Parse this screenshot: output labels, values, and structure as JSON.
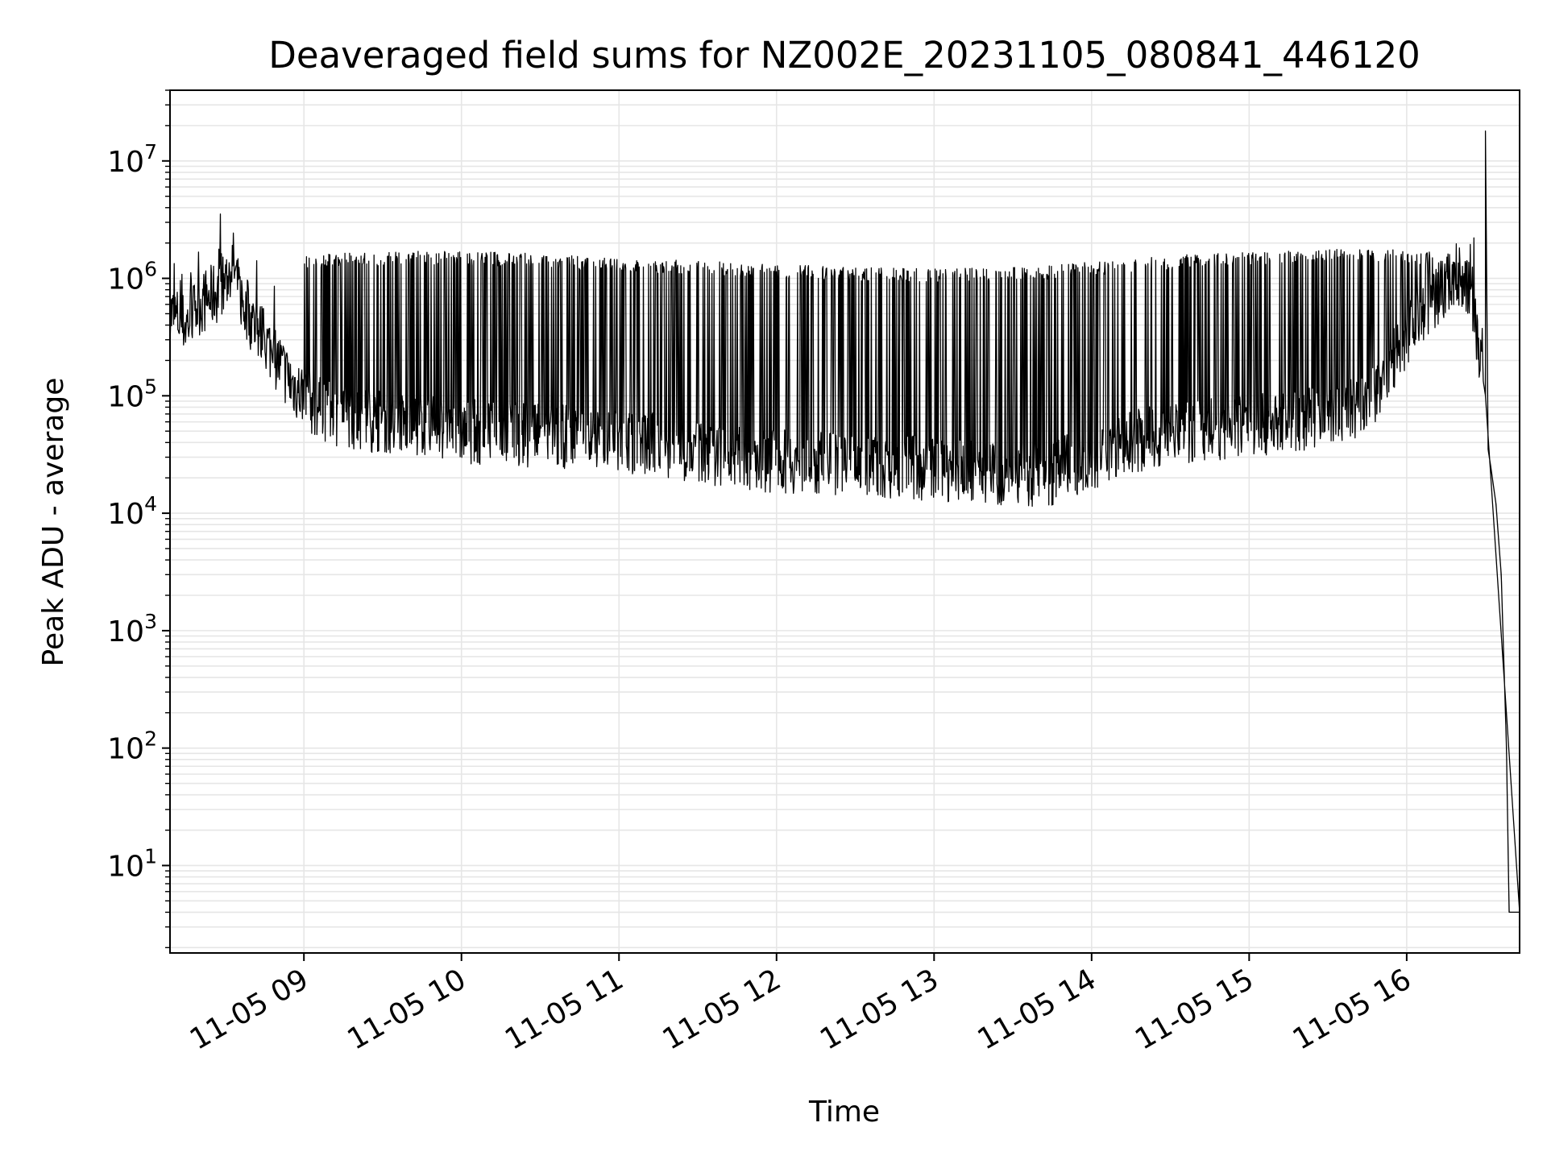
{
  "chart_data": {
    "type": "line",
    "title": "Deaveraged field sums for NZ002E_20231105_080841_446120",
    "xlabel": "Time",
    "ylabel": "Peak ADU - average",
    "yscale": "log",
    "ylim": [
      1.8,
      40000000
    ],
    "xlim": [
      "2023-11-05 08:09",
      "2023-11-05 16:43"
    ],
    "grid": true,
    "line_color": "#000000",
    "x_ticks": [
      "11-05 09",
      "11-05 10",
      "11-05 11",
      "11-05 12",
      "11-05 13",
      "11-05 14",
      "11-05 15",
      "11-05 16"
    ],
    "y_ticks": [
      {
        "value": 10,
        "base": "10",
        "exp": "1"
      },
      {
        "value": 100,
        "base": "10",
        "exp": "2"
      },
      {
        "value": 1000,
        "base": "10",
        "exp": "3"
      },
      {
        "value": 10000,
        "base": "10",
        "exp": "4"
      },
      {
        "value": 100000,
        "base": "10",
        "exp": "5"
      },
      {
        "value": 1000000,
        "base": "10",
        "exp": "6"
      },
      {
        "value": 10000000,
        "base": "10",
        "exp": "7"
      }
    ],
    "series": [
      {
        "x": [
          "2023-11-05 08:09",
          "2023-11-05 08:12",
          "2023-11-05 08:15",
          "2023-11-05 08:20",
          "2023-11-05 08:25",
          "2023-11-05 08:30",
          "2023-11-05 08:33",
          "2023-11-05 08:35",
          "2023-11-05 08:38",
          "2023-11-05 08:40",
          "2023-11-05 08:45",
          "2023-11-05 08:50",
          "2023-11-05 08:55",
          "2023-11-05 09:00",
          "2023-11-05 09:05",
          "2023-11-05 09:10",
          "2023-11-05 09:20",
          "2023-11-05 09:30",
          "2023-11-05 09:45",
          "2023-11-05 10:00",
          "2023-11-05 10:15",
          "2023-11-05 10:30",
          "2023-11-05 10:45",
          "2023-11-05 11:00",
          "2023-11-05 11:15",
          "2023-11-05 11:30",
          "2023-11-05 11:45",
          "2023-11-05 12:00",
          "2023-11-05 12:15",
          "2023-11-05 12:30",
          "2023-11-05 12:45",
          "2023-11-05 13:00",
          "2023-11-05 13:15",
          "2023-11-05 13:30",
          "2023-11-05 13:45",
          "2023-11-05 14:00",
          "2023-11-05 14:15",
          "2023-11-05 14:30",
          "2023-11-05 14:45",
          "2023-11-05 15:00",
          "2023-11-05 15:15",
          "2023-11-05 15:30",
          "2023-11-05 15:45",
          "2023-11-05 15:55",
          "2023-11-05 16:05",
          "2023-11-05 16:15",
          "2023-11-05 16:20",
          "2023-11-05 16:25",
          "2023-11-05 16:28",
          "2023-11-05 16:30",
          "2023-11-05 16:30",
          "2023-11-05 16:31",
          "2023-11-05 16:32",
          "2023-11-05 16:34",
          "2023-11-05 16:36",
          "2023-11-05 16:38",
          "2023-11-05 16:39",
          "2023-11-05 16:40",
          "2023-11-05 16:42",
          "2023-11-05 16:43"
        ],
        "y": [
          500000,
          450000,
          400000,
          600000,
          700000,
          900000,
          1400000,
          800000,
          500000,
          450000,
          300000,
          200000,
          130000,
          100000,
          80000,
          70000,
          65000,
          60000,
          55000,
          50000,
          48000,
          46000,
          44000,
          40000,
          38000,
          34000,
          30000,
          28000,
          27000,
          26000,
          25000,
          24000,
          22000,
          21000,
          22000,
          30000,
          40000,
          48000,
          52000,
          55000,
          60000,
          65000,
          80000,
          200000,
          500000,
          900000,
          1100000,
          700000,
          200000,
          100000,
          18000000,
          35000,
          25000,
          12000,
          3000,
          100,
          4,
          4,
          4,
          4
        ]
      }
    ],
    "spike_band": {
      "x_range": [
        "2023-11-05 09:00",
        "2023-11-05 16:10"
      ],
      "upper_values": [
        1400000,
        1500000,
        1450000,
        1300000,
        1200000,
        1100000,
        1050000,
        1100000,
        1300000,
        1500000,
        1550000,
        1500000
      ],
      "upper_x": [
        "2023-11-05 09:00",
        "2023-11-05 09:40",
        "2023-11-05 10:20",
        "2023-11-05 11:00",
        "2023-11-05 11:40",
        "2023-11-05 12:20",
        "2023-11-05 13:00",
        "2023-11-05 13:40",
        "2023-11-05 14:20",
        "2023-11-05 15:00",
        "2023-11-05 15:40",
        "2023-11-05 16:10"
      ]
    }
  }
}
